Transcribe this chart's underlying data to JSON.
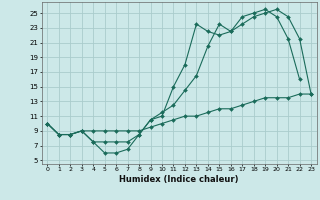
{
  "xlabel": "Humidex (Indice chaleur)",
  "bg_color": "#cce8e8",
  "grid_color": "#aacccc",
  "line_color": "#1a6b5a",
  "xlim": [
    -0.5,
    23.5
  ],
  "ylim": [
    4.5,
    26.5
  ],
  "xtick_labels": [
    "0",
    "1",
    "2",
    "3",
    "4",
    "5",
    "6",
    "7",
    "8",
    "9",
    "10",
    "11",
    "12",
    "13",
    "14",
    "15",
    "16",
    "17",
    "18",
    "19",
    "20",
    "21",
    "22",
    "23"
  ],
  "ytick_labels": [
    "5",
    "7",
    "9",
    "11",
    "13",
    "15",
    "17",
    "19",
    "21",
    "23",
    "25"
  ],
  "ytick_vals": [
    5,
    7,
    9,
    11,
    13,
    15,
    17,
    19,
    21,
    23,
    25
  ],
  "series1_x": [
    0,
    1,
    2,
    3,
    4,
    5,
    6,
    7,
    8,
    9,
    10,
    11,
    12,
    13,
    14,
    15,
    16,
    17,
    18,
    19,
    20,
    21,
    22,
    23
  ],
  "series1_y": [
    10.0,
    8.5,
    8.5,
    9.0,
    7.5,
    6.0,
    6.0,
    6.5,
    8.5,
    10.5,
    11.0,
    15.0,
    18.0,
    23.5,
    22.5,
    22.0,
    22.5,
    24.5,
    25.0,
    25.5,
    24.5,
    21.5,
    16.0,
    null
  ],
  "series2_x": [
    0,
    1,
    2,
    3,
    4,
    5,
    6,
    7,
    8,
    9,
    10,
    11,
    12,
    13,
    14,
    15,
    16,
    17,
    18,
    19,
    20,
    21,
    22,
    23
  ],
  "series2_y": [
    10.0,
    8.5,
    8.5,
    9.0,
    7.5,
    7.5,
    7.5,
    7.5,
    8.5,
    10.5,
    11.5,
    12.5,
    14.5,
    16.5,
    20.5,
    23.5,
    22.5,
    23.5,
    24.5,
    25.0,
    25.5,
    24.5,
    21.5,
    14.0
  ],
  "series3_x": [
    0,
    1,
    2,
    3,
    4,
    5,
    6,
    7,
    8,
    9,
    10,
    11,
    12,
    13,
    14,
    15,
    16,
    17,
    18,
    19,
    20,
    21,
    22,
    23
  ],
  "series3_y": [
    10.0,
    8.5,
    8.5,
    9.0,
    9.0,
    9.0,
    9.0,
    9.0,
    9.0,
    9.5,
    10.0,
    10.5,
    11.0,
    11.0,
    11.5,
    12.0,
    12.0,
    12.5,
    13.0,
    13.5,
    13.5,
    13.5,
    14.0,
    14.0
  ]
}
